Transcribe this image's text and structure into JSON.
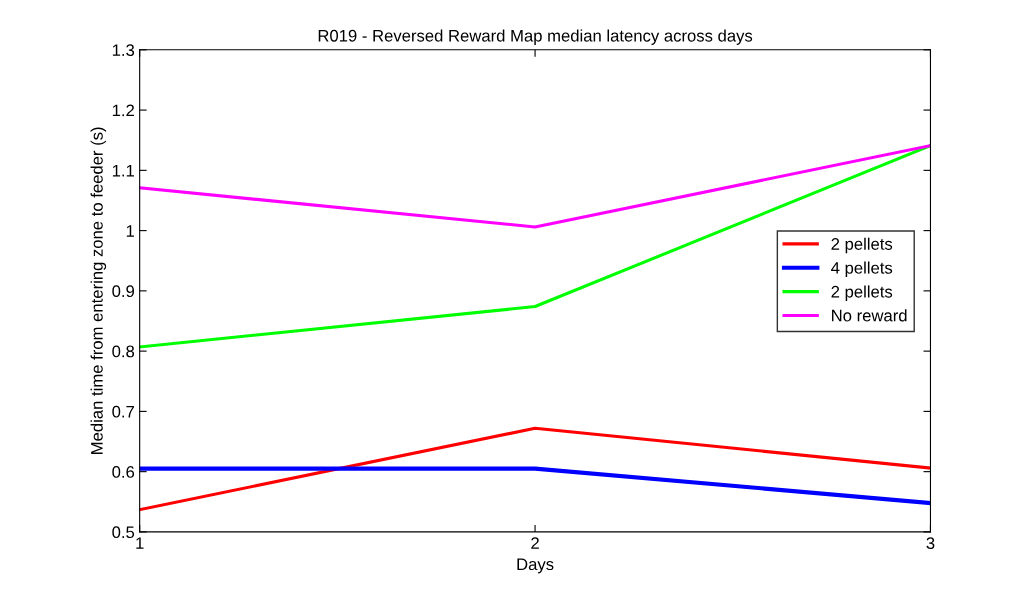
{
  "chart_data": {
    "type": "line",
    "title": "R019 - Reversed Reward Map median latency across days",
    "xlabel": "Days",
    "ylabel": "Median time from entering zone to feeder (s)",
    "x": [
      1,
      2,
      3
    ],
    "series": [
      {
        "name": "2 pellets",
        "color": "#ff0000",
        "values": [
          0.537,
          0.672,
          0.606
        ]
      },
      {
        "name": "4 pellets",
        "color": "#0000ff",
        "values": [
          0.605,
          0.605,
          0.548
        ]
      },
      {
        "name": "2 pellets",
        "color": "#00ff00",
        "values": [
          0.807,
          0.874,
          1.141
        ]
      },
      {
        "name": "No reward",
        "color": "#ff00ff",
        "values": [
          1.071,
          1.006,
          1.141
        ]
      }
    ],
    "xlim": [
      1,
      3
    ],
    "xticks": [
      1,
      2,
      3
    ],
    "ylim": [
      0.5,
      1.3
    ],
    "yticks": [
      0.5,
      0.6,
      0.7,
      0.8,
      0.9,
      1,
      1.1,
      1.2,
      1.3
    ],
    "grid": false,
    "legend": "right",
    "marker": "none",
    "line_style": "solid"
  }
}
